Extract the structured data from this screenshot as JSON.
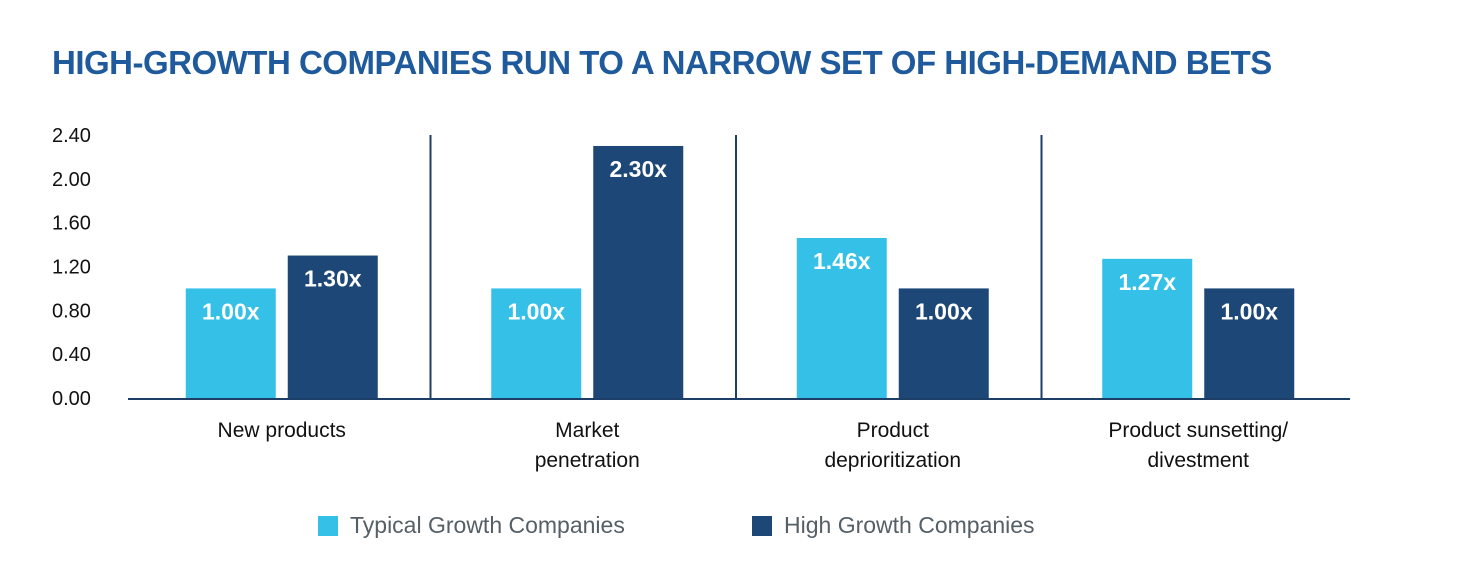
{
  "chart_data": {
    "type": "bar",
    "title": "HIGH-GROWTH COMPANIES RUN TO A NARROW SET OF HIGH-DEMAND BETS",
    "categories": [
      [
        "New products"
      ],
      [
        "Market",
        "penetration"
      ],
      [
        "Product",
        "deprioritization"
      ],
      [
        "Product sunsetting/",
        "divestment"
      ]
    ],
    "series": [
      {
        "name": "Typical Growth Companies",
        "values": [
          1.0,
          1.0,
          1.46,
          1.27
        ],
        "labels": [
          "1.00x",
          "1.00x",
          "1.46x",
          "1.27x"
        ],
        "color": "#35c0e8"
      },
      {
        "name": "High Growth Companies",
        "values": [
          1.3,
          2.3,
          1.0,
          1.0
        ],
        "labels": [
          "1.30x",
          "2.30x",
          "1.00x",
          "1.00x"
        ],
        "color": "#1d4776"
      }
    ],
    "ylim": [
      0,
      2.4
    ],
    "yticks": [
      "0.00",
      "0.40",
      "0.80",
      "1.20",
      "1.60",
      "2.00",
      "2.40"
    ],
    "xlabel": "",
    "ylabel": "",
    "grid": false,
    "category_separators": true,
    "legend_position": "bottom"
  },
  "colors": {
    "title": "#1f5a9c",
    "axis": "#1d3e66",
    "typical": "#35c0e8",
    "high": "#1d4776"
  }
}
